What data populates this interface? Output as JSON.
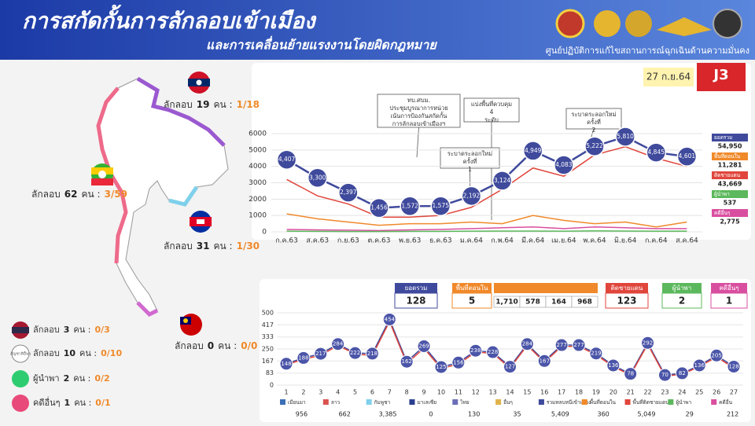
{
  "header": {
    "title": "การสกัดกั้นการลักลอบเข้าเมือง",
    "subtitle": "และการเคลื่อนย้ายแรงงานโดยผิดกฎหมาย",
    "org": "ศูนย์ปฏิบัติการแก้ไขสถานการณ์ฉุกเฉินด้านความมั่นคง"
  },
  "date": "27 ก.ย.64",
  "badge": "J3",
  "map": {
    "countries": [
      {
        "text": "ลักลอบ",
        "count": 19,
        "unit": "คน :",
        "ratio": "1/18"
      },
      {
        "text": "ลักลอบ",
        "count": 62,
        "unit": "คน :",
        "ratio": "3/59"
      },
      {
        "text": "ลักลอบ",
        "count": 31,
        "unit": "คน :",
        "ratio": "1/30"
      },
      {
        "text": "ลักลอบ",
        "count": 0,
        "unit": "คน :",
        "ratio": "0/0"
      }
    ],
    "others": [
      {
        "text": "ลักลอบ",
        "count": 3,
        "unit": "คน :",
        "ratio": "0/3"
      },
      {
        "text": "ลักลอบ",
        "count": 10,
        "unit": "คน :",
        "ratio": "0/10",
        "icon": "สัญชาติอื่นๆ"
      },
      {
        "text": "ผู้นำพา",
        "count": 2,
        "unit": "คน :",
        "ratio": "0/2"
      },
      {
        "text": "คดีอื่นๆ",
        "count": 1,
        "unit": "คน :",
        "ratio": "0/1"
      }
    ]
  },
  "chart_data": [
    {
      "type": "line",
      "categories": [
        "ก.ค.63",
        "ส.ค.63",
        "ก.ย.63",
        "ต.ค.63",
        "พ.ย.63",
        "ธ.ค.63",
        "ม.ค.64",
        "ก.พ.64",
        "มี.ค.64",
        "เม.ย.64",
        "พ.ค.64",
        "มิ.ย.64",
        "ก.ค.64",
        "ส.ค.64"
      ],
      "ylim": [
        0,
        6000
      ],
      "yticks": [
        0,
        1000,
        2000,
        3000,
        4000,
        5000,
        6000
      ],
      "annotations": [
        "ทบ.ศบม. ประชุมบูรณาการหน่วย เน้นการป้องกันสกัดกั้น การลักลอบเข้าเมืองฯ",
        "แบ่งพื้นที่ควบคุม 4 ระดับ",
        "ระบาดระลอกใหม่ ครั้งที่ 1",
        "ระบาดระลอกใหม่ ครั้งที่ 2"
      ],
      "series": [
        {
          "name": "ยอดรวม",
          "total": "54,950",
          "color": "#3f4a9c",
          "values": [
            4407,
            3300,
            2397,
            1456,
            1572,
            1575,
            2192,
            3124,
            4949,
            4083,
            5222,
            5810,
            4845,
            4601
          ],
          "value_labels": [
            "4,407",
            "3,300",
            "2,397",
            "1,456",
            "1,572",
            "1,575",
            "2,192",
            "3,124",
            "4,949",
            "4,083",
            "5,222",
            "5,810",
            "4,845",
            "4,601"
          ]
        },
        {
          "name": "พื้นที่ตอนใน",
          "total": "11,281",
          "color": "#f0892a",
          "values": [
            1100,
            800,
            600,
            400,
            500,
            500,
            600,
            500,
            1000,
            700,
            500,
            600,
            300,
            600
          ]
        },
        {
          "name": "ติดชายแดน",
          "total": "43,669",
          "color": "#e0463c",
          "values": [
            3200,
            2200,
            1700,
            900,
            900,
            1000,
            1500,
            2600,
            3900,
            3400,
            4700,
            5200,
            4500,
            4000
          ]
        },
        {
          "name": "ผู้นำพา",
          "total": "537",
          "color": "#5cb85c",
          "values": [
            40,
            30,
            20,
            20,
            30,
            30,
            40,
            50,
            50,
            40,
            60,
            50,
            40,
            40
          ]
        },
        {
          "name": "คดีอื่นๆ",
          "total": "2,775",
          "color": "#d94fa0",
          "values": [
            150,
            120,
            100,
            80,
            120,
            150,
            200,
            250,
            300,
            200,
            300,
            250,
            200,
            200
          ]
        }
      ]
    },
    {
      "type": "line",
      "x": [
        1,
        2,
        3,
        4,
        5,
        6,
        7,
        8,
        9,
        10,
        11,
        12,
        13,
        14,
        15,
        16,
        17,
        18,
        19,
        20,
        21,
        22,
        23,
        24,
        25,
        26,
        27
      ],
      "xlim": [
        1,
        27
      ],
      "ylim": [
        0,
        500
      ],
      "yticks": [
        0,
        83,
        167,
        250,
        333,
        417,
        500
      ],
      "series": [
        {
          "name": "เมียนมา",
          "total": "956",
          "color": "#3d6fb6"
        },
        {
          "name": "ลาว",
          "total": "662",
          "color": "#d9534f"
        },
        {
          "name": "กัมพูชา",
          "total": "3,385",
          "color": "#7fd0ea"
        },
        {
          "name": "มาเลเซีย",
          "total": "0",
          "color": "#2a3f8f"
        },
        {
          "name": "ไทย",
          "total": "130",
          "color": "#6b6fb8"
        },
        {
          "name": "อื่นๆ",
          "total": "35",
          "color": "#e0b24a"
        },
        {
          "name": "รวมหลบหนีเข้าเมือง",
          "total": "5,409",
          "color": "#3f4a9c",
          "values": [
            148,
            188,
            217,
            284,
            222,
            218,
            454,
            162,
            269,
            125,
            156,
            238,
            228,
            127,
            284,
            167,
            277,
            277,
            219,
            136,
            78,
            292,
            70,
            82,
            136,
            205,
            128
          ]
        },
        {
          "name": "พื้นที่ตอนใน",
          "total": "360",
          "color": "#f0892a"
        },
        {
          "name": "พื้นที่ติดชายแดน",
          "total": "5,049",
          "color": "#e0463c",
          "values": [
            140,
            180,
            205,
            275,
            215,
            205,
            440,
            150,
            255,
            115,
            145,
            228,
            220,
            118,
            275,
            158,
            268,
            268,
            210,
            128,
            70,
            282,
            62,
            75,
            128,
            195,
            118
          ]
        },
        {
          "name": "ผู้นำพา",
          "total": "29",
          "color": "#5cb85c"
        },
        {
          "name": "คดีอื่น",
          "total": "212",
          "color": "#d94fa0"
        }
      ]
    }
  ],
  "summary": [
    {
      "label": "ยอดรวม",
      "value": 128
    },
    {
      "label": "พื้นที่ตอนใน",
      "value": 5,
      "sub": [
        "1,710",
        "578",
        "164",
        "968"
      ]
    },
    {
      "label": "ติดชายแดน",
      "value": 123
    },
    {
      "label": "ผู้นำพา",
      "value": 2
    },
    {
      "label": "คดีอื่นๆ",
      "value": 1
    }
  ]
}
